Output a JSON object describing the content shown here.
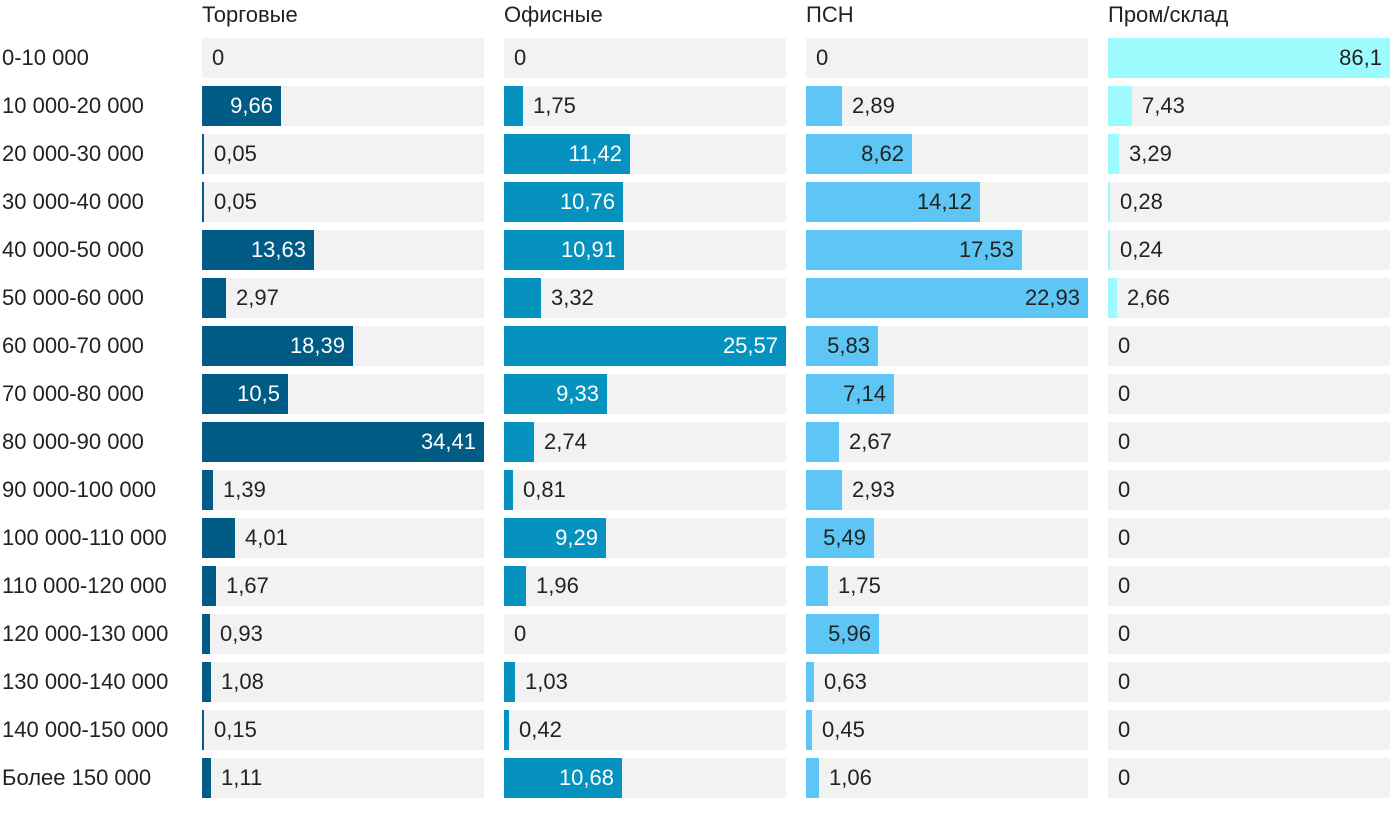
{
  "chart_data": {
    "type": "bar",
    "orientation": "horizontal",
    "layout": "small-multiples",
    "categories": [
      "0-10 000",
      "10 000-20 000",
      "20 000-30 000",
      "30 000-40 000",
      "40 000-50 000",
      "50 000-60 000",
      "60 000-70 000",
      "70 000-80 000",
      "80 000-90 000",
      "90 000-100 000",
      "100 000-110 000",
      "110 000-120 000",
      "120 000-130 000",
      "130 000-140 000",
      "140 000-150 000",
      "Более 150 000"
    ],
    "series": [
      {
        "name": "Торговые",
        "color": "#005b85",
        "label_color": "#ffffff",
        "values": [
          0,
          9.66,
          0.05,
          0.05,
          13.63,
          2.97,
          18.39,
          10.5,
          34.41,
          1.39,
          4.01,
          1.67,
          0.93,
          1.08,
          0.15,
          1.11
        ],
        "labels": [
          "0",
          "9,66",
          "0,05",
          "0,05",
          "13,63",
          "2,97",
          "18,39",
          "10,5",
          "34,41",
          "1,39",
          "4,01",
          "1,67",
          "0,93",
          "1,08",
          "0,15",
          "1,11"
        ]
      },
      {
        "name": "Офисные",
        "color": "#0692be",
        "label_color": "#ffffff",
        "values": [
          0,
          1.75,
          11.42,
          10.76,
          10.91,
          3.32,
          25.57,
          9.33,
          2.74,
          0.81,
          9.29,
          1.96,
          0,
          1.03,
          0.42,
          10.68
        ],
        "labels": [
          "0",
          "1,75",
          "11,42",
          "10,76",
          "10,91",
          "3,32",
          "25,57",
          "9,33",
          "2,74",
          "0,81",
          "9,29",
          "1,96",
          "0",
          "1,03",
          "0,42",
          "10,68"
        ]
      },
      {
        "name": "ПСН",
        "color": "#5dc6f4",
        "label_color": "#222222",
        "values": [
          0,
          2.89,
          8.62,
          14.12,
          17.53,
          22.93,
          5.83,
          7.14,
          2.67,
          2.93,
          5.49,
          1.75,
          5.96,
          0.63,
          0.45,
          1.06
        ],
        "labels": [
          "0",
          "2,89",
          "8,62",
          "14,12",
          "17,53",
          "22,93",
          "5,83",
          "7,14",
          "2,67",
          "2,93",
          "5,49",
          "1,75",
          "5,96",
          "0,63",
          "0,45",
          "1,06"
        ]
      },
      {
        "name": "Пром/склад",
        "color": "#9dfbfd",
        "label_color": "#222222",
        "values": [
          86.1,
          7.43,
          3.29,
          0.28,
          0.24,
          2.66,
          0,
          0,
          0,
          0,
          0,
          0,
          0,
          0,
          0,
          0
        ],
        "labels": [
          "86,1",
          "7,43",
          "3,29",
          "0,28",
          "0,24",
          "2,66",
          "0",
          "0",
          "0",
          "0",
          "0",
          "0",
          "0",
          "0",
          "0",
          "0"
        ]
      }
    ],
    "title": "",
    "xlabel": "",
    "ylabel": "",
    "grid": false,
    "legend": "none"
  }
}
